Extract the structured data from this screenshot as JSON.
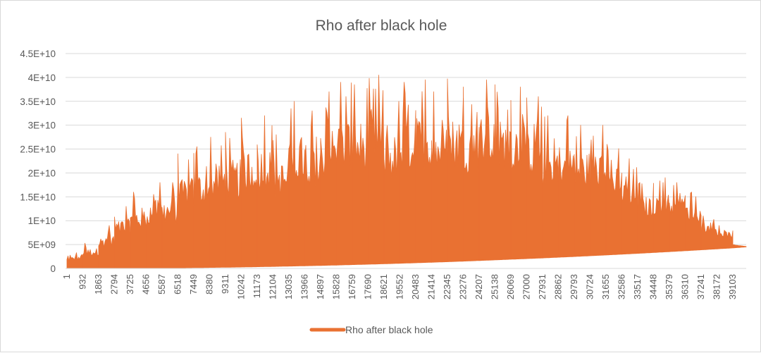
{
  "chart_data": {
    "type": "area",
    "title": "Rho after black hole",
    "xlabel": "",
    "ylabel": "",
    "series": [
      {
        "name": "Rho after black hole",
        "color": "#E97132",
        "segment_peaks": [
          3300000000.0,
          5300000000.0,
          9000000000.0,
          13000000000.0,
          16000000000.0,
          18000000000.0,
          18000000000.0,
          24000000000.0,
          25500000000.0,
          27500000000.0,
          28500000000.0,
          31500000000.0,
          32000000000.0,
          28000000000.0,
          35000000000.0,
          33000000000.0,
          37000000000.0,
          39000000000.0,
          38500000000.0,
          40500000000.0,
          35000000000.0,
          39000000000.0,
          39500000000.0,
          37000000000.0,
          39700000000.0,
          38000000000.0,
          39500000000.0,
          38500000000.0,
          38000000000.0,
          36000000000.0,
          32000000000.0,
          32000000000.0,
          30000000000.0,
          30000000000.0,
          26000000000.0,
          23000000000.0,
          18000000000.0,
          19000000000.0,
          18000000000.0,
          16000000000.0,
          11000000000.0,
          9000000000.0,
          5000000000.0
        ],
        "lower_envelope": [
          0,
          0,
          10000000.0,
          20000000.0,
          40000000.0,
          60000000.0,
          90000000.0,
          120000000.0,
          160000000.0,
          200000000.0,
          240000000.0,
          290000000.0,
          350000000.0,
          410000000.0,
          480000000.0,
          550000000.0,
          620000000.0,
          700000000.0,
          790000000.0,
          880000000.0,
          970000000.0,
          1070000000.0,
          1180000000.0,
          1290000000.0,
          1400000000.0,
          1520000000.0,
          1650000000.0,
          1780000000.0,
          1920000000.0,
          2050000000.0,
          2190000000.0,
          2340000000.0,
          2490000000.0,
          2650000000.0,
          2810000000.0,
          2980000000.0,
          3150000000.0,
          3330000000.0,
          3510000000.0,
          3700000000.0,
          3890000000.0,
          4090000000.0,
          4290000000.0,
          4500000000.0
        ],
        "end_value": 4600000000.0
      }
    ],
    "x_tick_labels": [
      "1",
      "932",
      "1863",
      "2794",
      "3725",
      "4656",
      "5587",
      "6518",
      "7449",
      "8380",
      "9311",
      "10242",
      "11173",
      "12104",
      "13035",
      "13966",
      "14897",
      "15828",
      "16759",
      "17690",
      "18621",
      "19552",
      "20483",
      "21414",
      "22345",
      "23276",
      "24207",
      "25138",
      "26069",
      "27000",
      "27931",
      "28862",
      "29793",
      "30724",
      "31655",
      "32586",
      "33517",
      "34448",
      "35379",
      "36310",
      "37241",
      "38172",
      "39103"
    ],
    "y_tick_labels": [
      "0",
      "5E+09",
      "1E+10",
      "1.5E+10",
      "2E+10",
      "2.5E+10",
      "3E+10",
      "3.5E+10",
      "4E+10",
      "4.5E+10"
    ],
    "ylim": [
      0,
      45000000000.0
    ],
    "y_step": 5000000000.0,
    "grid": "horizontal",
    "legend": "bottom",
    "legend_entries": [
      "Rho after black hole"
    ]
  }
}
